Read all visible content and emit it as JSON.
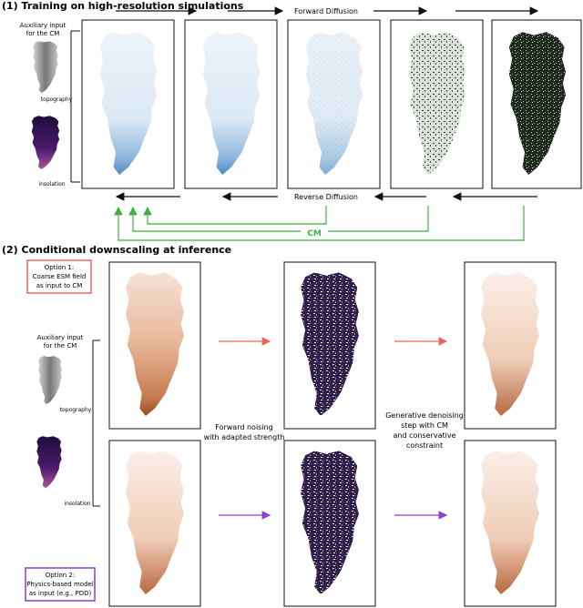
{
  "section1": {
    "title": "(1) Training on high-resolution simulations",
    "aux_label": [
      "Auxiliary input",
      "for the CM"
    ],
    "topography_label": "topography",
    "insolation_label": "insolation",
    "forward_label": "Forward Diffusion",
    "reverse_label": "Reverse Diffusion",
    "cm_label": "CM"
  },
  "section2": {
    "title": "(2) Conditional downscaling at inference",
    "option1": [
      "Option 1:",
      "Coarse ESM field",
      "as input to CM"
    ],
    "option2": [
      "Option 2:",
      "Physics-based model",
      "as input (e.g., PDD)"
    ],
    "aux_label": [
      "Auxiliary input",
      "for the CM"
    ],
    "topography_label": "topography",
    "insolation_label": "insolation",
    "forward_noising": [
      "Forward noising",
      "with adapted strength"
    ],
    "denoising": [
      "Generative denoising",
      "step with CM",
      "and conservative",
      "constraint"
    ]
  },
  "colors": {
    "cm_arrow": "#3cb043",
    "option1": "#e8675a",
    "option2": "#8a3fd0",
    "field_blue": "#3d7fc0",
    "field_brown": "#b5643a",
    "noise_dark": "#1e2a1c"
  }
}
